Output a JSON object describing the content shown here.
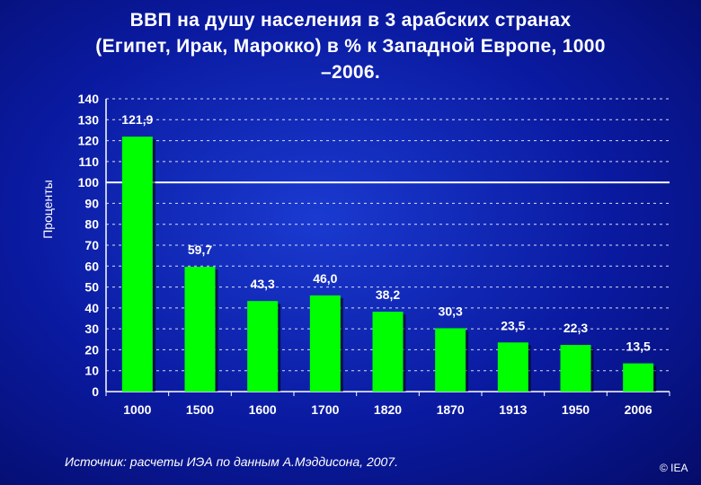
{
  "title": "ВВП на душу населения в 3 арабских странах\n(Египет, Ирак, Марокко) в % к Западной Европе, 1000\n–2006.",
  "source": "Источник: расчеты ИЭА по данным А.Мэддисона, 2007.",
  "credit": "© IEA",
  "colors": {
    "bar": "#00ff00",
    "background": "#0a1aa0",
    "text": "#ffffff"
  },
  "chart_data": {
    "type": "bar",
    "categories": [
      "1000",
      "1500",
      "1600",
      "1700",
      "1820",
      "1870",
      "1913",
      "1950",
      "2006"
    ],
    "values": [
      121.9,
      59.7,
      43.3,
      46.0,
      38.2,
      30.3,
      23.5,
      22.3,
      13.5
    ],
    "value_labels": [
      "121,9",
      "59,7",
      "43,3",
      "46,0",
      "38,2",
      "30,3",
      "23,5",
      "22,3",
      "13,5"
    ],
    "ylabel": "Проценты",
    "xlabel": "",
    "ylim": [
      0,
      140
    ],
    "yticks": [
      0,
      10,
      20,
      30,
      40,
      50,
      60,
      70,
      80,
      90,
      100,
      110,
      120,
      130,
      140
    ],
    "reference_line": 100,
    "grid": "dashed horizontal"
  }
}
